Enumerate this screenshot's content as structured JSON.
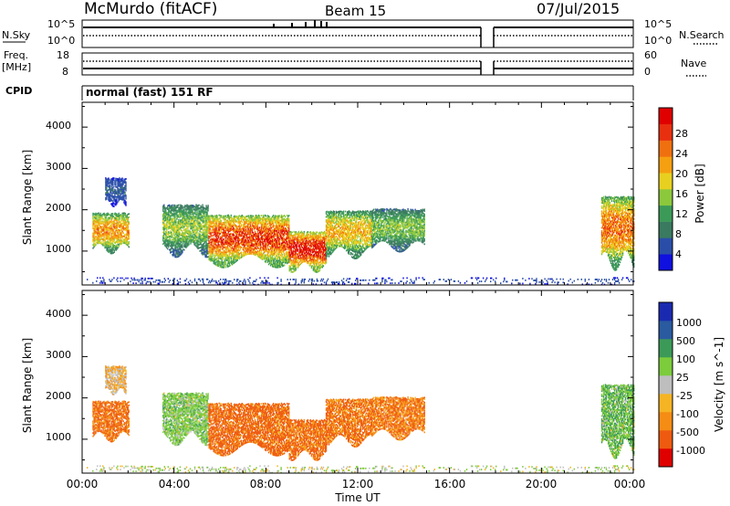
{
  "header": {
    "station": "McMurdo (fitACF)",
    "beam": "Beam 15",
    "date": "07/Jul/2015"
  },
  "noise_panel": {
    "left_label": "N.Sky",
    "left_ticks": [
      "10^5",
      "10^0"
    ],
    "right_ticks": [
      "10^5",
      "10^0"
    ],
    "right_label": "N.Search"
  },
  "freq_panel": {
    "left_label_line1": "Freq.",
    "left_label_line2": "[MHz]",
    "left_ticks": [
      "18",
      "8"
    ],
    "right_ticks": [
      "60",
      "0"
    ],
    "right_label": "Nave"
  },
  "cpid": {
    "label": "CPID",
    "program": "normal (fast) 151 RF"
  },
  "colors": {
    "power_scale": [
      "#1010e0",
      "#2a4ea8",
      "#3a7a60",
      "#3c9a58",
      "#8cc83c",
      "#e8d020",
      "#f5a010",
      "#f07010",
      "#e83010",
      "#e00000"
    ],
    "velocity_scale": [
      "#e00000",
      "#ee5a10",
      "#f58c14",
      "#f5b424",
      "#bebebe",
      "#7ccc3c",
      "#3c9a58",
      "#2a5aa0",
      "#1a2ab0"
    ]
  },
  "chart_data": [
    {
      "type": "heatmap",
      "quantity": "power",
      "xlabel": "",
      "ylabel": "Slant Range [km]",
      "xlim": [
        0,
        24
      ],
      "ylim": [
        180,
        4600
      ],
      "yticks": [
        "1000",
        "2000",
        "3000",
        "4000"
      ],
      "colorbar": {
        "label": "Power [dB]",
        "ticks": [
          "4",
          "8",
          "12",
          "16",
          "20",
          "24",
          "28"
        ],
        "range": [
          0,
          32
        ]
      },
      "scatter_regions": [
        {
          "t0": 0.45,
          "t1": 2.05,
          "r0": 1050,
          "r1": 1900,
          "peak": 22
        },
        {
          "t0": 1.0,
          "t1": 1.9,
          "r0": 2150,
          "r1": 2750,
          "peak": 6
        },
        {
          "t0": 3.5,
          "t1": 5.5,
          "r0": 1000,
          "r1": 2100,
          "peak": 15
        },
        {
          "t0": 5.5,
          "t1": 9.0,
          "r0": 750,
          "r1": 1850,
          "peak": 27
        },
        {
          "t0": 9.0,
          "t1": 10.6,
          "r0": 600,
          "r1": 1450,
          "peak": 30
        },
        {
          "t0": 10.6,
          "t1": 12.6,
          "r0": 950,
          "r1": 1950,
          "peak": 20
        },
        {
          "t0": 12.6,
          "t1": 14.9,
          "r0": 1100,
          "r1": 2000,
          "peak": 14
        },
        {
          "t0": 22.6,
          "t1": 24.0,
          "r0": 750,
          "r1": 2300,
          "peak": 24
        },
        {
          "t0": 0.2,
          "t1": 24.0,
          "r0": 190,
          "r1": 330,
          "peak": 5
        }
      ]
    },
    {
      "type": "heatmap",
      "quantity": "velocity",
      "xlabel": "Time UT",
      "ylabel": "Slant Range [km]",
      "xlim": [
        0,
        24
      ],
      "ylim": [
        180,
        4600
      ],
      "xticks": [
        "00:00",
        "04:00",
        "08:00",
        "12:00",
        "16:00",
        "20:00",
        "00:00"
      ],
      "yticks": [
        "1000",
        "2000",
        "3000",
        "4000"
      ],
      "colorbar": {
        "label": "Velocity [m s^-1]",
        "ticks": [
          "1000",
          "500",
          "100",
          "25",
          "-25",
          "-100",
          "-500",
          "-1000"
        ]
      },
      "scatter_regions": [
        {
          "t0": 0.45,
          "t1": 2.05,
          "r0": 1050,
          "r1": 1900,
          "mean_velocity": -120
        },
        {
          "t0": 3.5,
          "t1": 5.5,
          "r0": 1000,
          "r1": 2100,
          "mean_velocity": 300
        },
        {
          "t0": 5.5,
          "t1": 9.0,
          "r0": 750,
          "r1": 1850,
          "mean_velocity": -150
        },
        {
          "t0": 9.0,
          "t1": 10.6,
          "r0": 600,
          "r1": 1450,
          "mean_velocity": -120
        },
        {
          "t0": 10.6,
          "t1": 12.6,
          "r0": 950,
          "r1": 1950,
          "mean_velocity": -100
        },
        {
          "t0": 12.6,
          "t1": 14.9,
          "r0": 1100,
          "r1": 2000,
          "mean_velocity": -90
        },
        {
          "t0": 22.6,
          "t1": 24.0,
          "r0": 750,
          "r1": 2300,
          "mean_velocity": 400
        },
        {
          "t0": 0.2,
          "t1": 24.0,
          "r0": 190,
          "r1": 330,
          "mean_velocity": 80
        }
      ]
    }
  ]
}
